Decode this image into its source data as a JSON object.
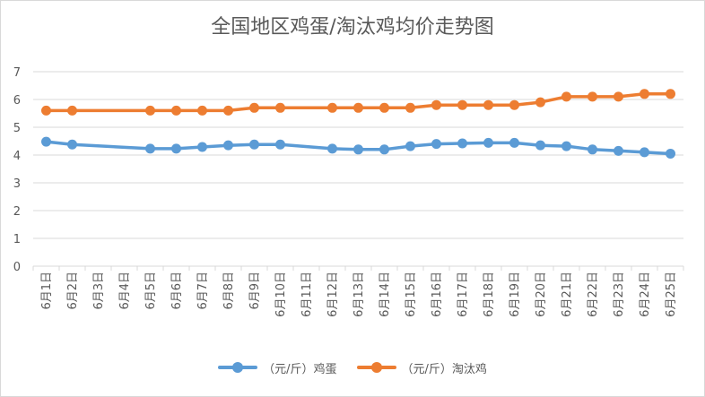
{
  "chart_data": {
    "type": "line",
    "title": "全国地区鸡蛋/淘汰鸡均价走势图",
    "categories": [
      "6月1日",
      "6月2日",
      "6月3日",
      "6月4日",
      "6月5日",
      "6月6日",
      "6月7日",
      "6月8日",
      "6月9日",
      "6月10日",
      "6月11日",
      "6月12日",
      "6月13日",
      "6月14日",
      "6月15日",
      "6月16日",
      "6月17日",
      "6月18日",
      "6月19日",
      "6月20日",
      "6月21日",
      "6月22日",
      "6月23日",
      "6月24日",
      "6月25日"
    ],
    "ylim": [
      0,
      7
    ],
    "yticks": [
      "0",
      "1",
      "2",
      "3",
      "4",
      "5",
      "6",
      "7"
    ],
    "grid": true,
    "legend_position": "bottom",
    "series": [
      {
        "name": "（元/斤）鸡蛋",
        "color": "#5b9bd5",
        "values": [
          4.48,
          4.38,
          null,
          null,
          4.23,
          4.23,
          4.29,
          4.35,
          4.38,
          4.38,
          null,
          4.23,
          4.2,
          4.2,
          4.32,
          4.4,
          4.42,
          4.44,
          4.44,
          4.35,
          4.32,
          4.2,
          4.15,
          4.1,
          4.05
        ]
      },
      {
        "name": "（元/斤）淘汰鸡",
        "color": "#ed7d31",
        "values": [
          5.6,
          5.6,
          null,
          null,
          5.6,
          5.6,
          5.6,
          5.6,
          5.7,
          5.7,
          null,
          5.7,
          5.7,
          5.7,
          5.7,
          5.8,
          5.8,
          5.8,
          5.8,
          5.9,
          6.1,
          6.1,
          6.1,
          6.2,
          6.2
        ]
      }
    ]
  }
}
